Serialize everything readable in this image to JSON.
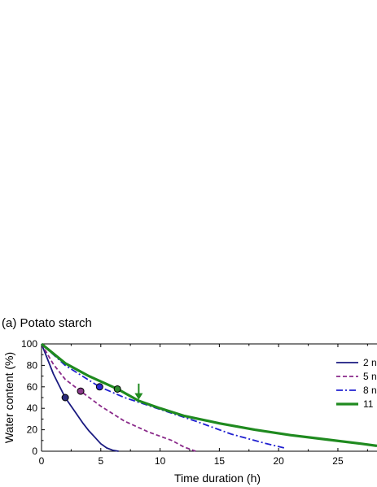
{
  "panel_label": "(a) Potato starch",
  "chart_data": {
    "type": "line",
    "xlabel": "Time duration (h)",
    "ylabel": "Water content (%)",
    "xlim": [
      0,
      28.3
    ],
    "ylim": [
      0,
      100
    ],
    "xticks": [
      0,
      5,
      10,
      15,
      20,
      25
    ],
    "yticks": [
      0,
      20,
      40,
      60,
      80,
      100
    ],
    "grid": false,
    "legend_position": "right",
    "series": [
      {
        "name": "2 n",
        "color": "#1a1a80",
        "dash": "solid",
        "width": 1.8,
        "x": [
          0,
          0.5,
          1,
          1.5,
          2,
          2.5,
          3,
          3.5,
          4,
          4.5,
          5,
          5.5,
          6,
          6.5
        ],
        "y": [
          100,
          86,
          72,
          61,
          50,
          42,
          34,
          26,
          19,
          13,
          7,
          3,
          1,
          0
        ],
        "marker": {
          "x": 2,
          "y": 50,
          "fill": "#2a2a7a"
        }
      },
      {
        "name": "5 n",
        "color": "#8a2a8a",
        "dash": "5,3",
        "width": 1.8,
        "x": [
          0,
          1,
          2,
          3.3,
          5,
          7,
          9,
          11,
          12,
          13
        ],
        "y": [
          100,
          81,
          67,
          56,
          42,
          28,
          18,
          10,
          4,
          0
        ],
        "marker": {
          "x": 3.3,
          "y": 56,
          "fill": "#8a3a8a"
        }
      },
      {
        "name": "8 n",
        "color": "#2020d0",
        "dash": "8,3,2,3",
        "width": 1.8,
        "x": [
          0,
          2,
          4.9,
          7,
          10,
          13,
          16,
          19,
          20.5
        ],
        "y": [
          100,
          80,
          60,
          50,
          39,
          28,
          16,
          7,
          3
        ],
        "marker": {
          "x": 4.9,
          "y": 60,
          "fill": "#2a2ad0"
        }
      },
      {
        "name": "11",
        "color": "#1f8a1f",
        "dash": "solid",
        "width": 3.2,
        "x": [
          0,
          2,
          4,
          6.4,
          8.2,
          10,
          12,
          15,
          18,
          21,
          24,
          27,
          28.3
        ],
        "y": [
          100,
          82,
          70,
          58,
          47,
          40,
          33,
          26,
          20,
          15,
          11,
          7,
          5
        ],
        "marker": {
          "x": 6.4,
          "y": 58,
          "fill": "#2e8a2e"
        }
      }
    ],
    "annotations": [
      {
        "type": "arrow",
        "x": 8.2,
        "y_from": 63,
        "y_to": 48,
        "color": "#1f8a1f"
      }
    ]
  }
}
